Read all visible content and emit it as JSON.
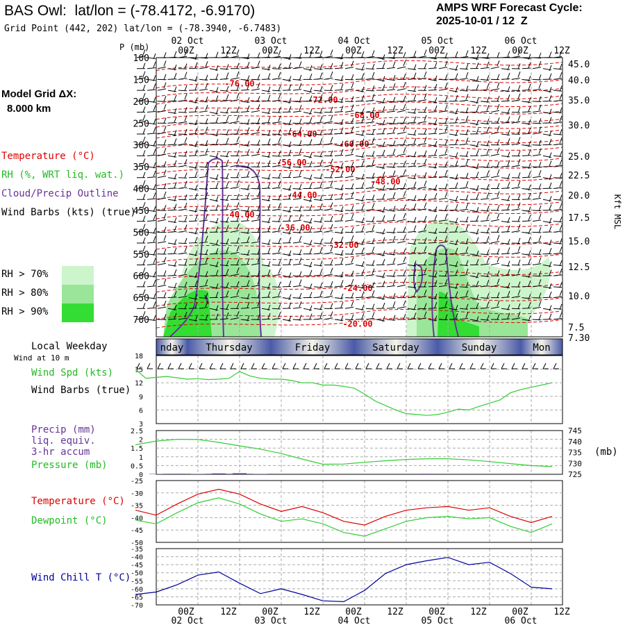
{
  "header": {
    "station_title": "BAS Owl:  lat/lon = (-78.4172, -6.9170)",
    "grid_point": "Grid Point (442, 202) lat/lon = (-78.3940, -6.7483)",
    "cycle_line1": "AMPS WRF Forecast Cycle:",
    "cycle_line2": "2025-10-01 / 12  Z"
  },
  "sidebar": {
    "model_grid_label": "Model Grid ΔX:",
    "model_grid_value": "8.000 km",
    "temperature_label": "Temperature (°C)",
    "rh_label": "RH (%, WRT liq. wat.)",
    "cloud_label": "Cloud/Precip Outline",
    "wind_label": "Wind Barbs (kts) (true)",
    "rh_legend": [
      {
        "label": "RH > 70%",
        "color": "#ccf5cc"
      },
      {
        "label": "RH > 80%",
        "color": "#99e699"
      },
      {
        "label": "RH > 90%",
        "color": "#33dd33"
      }
    ],
    "local_weekday_label": "Local Weekday",
    "wind_10m_label": "Wind at 10 m",
    "wind_spd_label": "Wind Spd (kts)",
    "wind_barbs_label": "Wind Barbs (true)",
    "precip_label_1": "Precip (mm)",
    "precip_label_2": "liq. equiv.",
    "precip_label_3": "3-hr accum",
    "pressure_label": "Pressure (mb)",
    "pressure_unit": "(mb)",
    "temp_label": "Temperature (°C)",
    "dewpoint_label": "Dewpoint (°C)",
    "windchill_label": "Wind Chill T (°C)"
  },
  "colors": {
    "temperature": "#dd0000",
    "rh": "#33cc33",
    "cloud": "#663399",
    "wind_speed": "#33cc33",
    "pressure": "#33cc33",
    "precip": "#663399",
    "dewpoint": "#33cc33",
    "windchill": "#000099",
    "grid": "#999999"
  },
  "chart_data": [
    {
      "type": "heatmap",
      "name": "vertical-cross-section",
      "ylabel": "P (mb)",
      "right_axis_label": "Kft MSL",
      "x_top_dates": [
        "02 Oct",
        "03 Oct",
        "04 Oct",
        "05 Oct",
        "06 Oct"
      ],
      "x_top_hours": [
        "00Z",
        "12Z",
        "00Z",
        "12Z",
        "00Z",
        "12Z",
        "00Z",
        "12Z",
        "00Z",
        "12Z"
      ],
      "pressure_ticks": [
        100,
        150,
        200,
        250,
        300,
        350,
        400,
        450,
        500,
        550,
        600,
        650,
        700
      ],
      "height_ticks": [
        "45.0",
        "40.0",
        "35.0",
        "30.0",
        "25.0",
        "22.5",
        "20.0",
        "17.5",
        "15.0",
        "12.5",
        "10.0",
        "7.5",
        "7.30"
      ],
      "temperature_contour_labels": [
        {
          "label": "-76.00",
          "forecast_hour": 30,
          "pressure": 160
        },
        {
          "label": "-72.00",
          "forecast_hour": 54,
          "pressure": 197
        },
        {
          "label": "-68.00",
          "forecast_hour": 66,
          "pressure": 232
        },
        {
          "label": "-64.00",
          "forecast_hour": 48,
          "pressure": 275
        },
        {
          "label": "-60.00",
          "forecast_hour": 63,
          "pressure": 298
        },
        {
          "label": "-56.00",
          "forecast_hour": 45,
          "pressure": 340
        },
        {
          "label": "-52.00",
          "forecast_hour": 59,
          "pressure": 356
        },
        {
          "label": "-48.00",
          "forecast_hour": 72,
          "pressure": 384
        },
        {
          "label": "-44.00",
          "forecast_hour": 48,
          "pressure": 415
        },
        {
          "label": "-40.00",
          "forecast_hour": 30,
          "pressure": 460
        },
        {
          "label": "-36.00",
          "forecast_hour": 46,
          "pressure": 490
        },
        {
          "label": "-32.00",
          "forecast_hour": 60,
          "pressure": 530
        },
        {
          "label": "-24.00",
          "forecast_hour": 64,
          "pressure": 628
        },
        {
          "label": "-20.00",
          "forecast_hour": 64,
          "pressure": 710
        }
      ]
    },
    {
      "type": "line",
      "name": "wind-speed",
      "weekdays": [
        "nday",
        "Thursday",
        "Friday",
        "Saturday",
        "Sunday",
        "Mon"
      ],
      "ylim": [
        3,
        18
      ],
      "yticks": [
        3,
        6,
        9,
        12,
        15,
        18
      ],
      "forecast_hours": [
        0,
        3,
        6,
        9,
        12,
        15,
        18,
        21,
        24,
        27,
        30,
        33,
        36,
        39,
        42,
        45,
        48,
        51,
        54,
        57,
        60,
        63,
        66,
        69,
        72,
        75,
        78,
        81,
        84,
        87,
        90,
        93,
        96,
        99,
        102,
        105,
        108,
        111,
        114,
        117,
        120
      ],
      "series": [
        {
          "name": "Wind Spd (kts)",
          "values": [
            15,
            13,
            13.2,
            13.4,
            13.1,
            12.8,
            12.9,
            12.7,
            12.8,
            13.0,
            14.5,
            13.5,
            13.0,
            12.8,
            12.8,
            12.5,
            12.0,
            12.0,
            11.5,
            11.5,
            11.2,
            10.8,
            9.5,
            8.0,
            7.0,
            6.0,
            5.2,
            5.0,
            4.8,
            5.0,
            5.5,
            6.2,
            6.0,
            6.8,
            7.5,
            8.2,
            9.8,
            10.5,
            11.0,
            11.5,
            12.0
          ]
        }
      ]
    },
    {
      "type": "line",
      "name": "precip-pressure",
      "ylim_left": [
        0,
        2.5
      ],
      "yticks_left": [
        "0",
        "0.5",
        "1",
        "1.5",
        "2",
        "2.5"
      ],
      "ylim_right": [
        725,
        745
      ],
      "yticks_right": [
        725,
        730,
        735,
        740,
        745
      ],
      "forecast_hours": [
        0,
        6,
        12,
        18,
        24,
        30,
        36,
        42,
        48,
        54,
        60,
        66,
        72,
        78,
        84,
        90,
        96,
        102,
        108,
        114,
        120
      ],
      "series": [
        {
          "name": "Pressure (mb)",
          "values": [
            738.5,
            740.2,
            741.0,
            740.9,
            739.6,
            738.0,
            736.5,
            734.5,
            732.0,
            729.6,
            729.7,
            730.5,
            731.2,
            731.8,
            732.1,
            732.1,
            731.6,
            730.8,
            729.9,
            729.0,
            728.5
          ]
        },
        {
          "name": "Precip (mm)",
          "type": "bar",
          "values": [
            0,
            0.02,
            0.03,
            0.02,
            0.05,
            0.06,
            0.02,
            0,
            0,
            0,
            0,
            0,
            0,
            0,
            0.03,
            0,
            0,
            0,
            0,
            0,
            0
          ]
        }
      ]
    },
    {
      "type": "line",
      "name": "temperature-dewpoint",
      "ylim": [
        -50,
        -25
      ],
      "yticks": [
        -25,
        -30,
        -35,
        -40,
        -45,
        -50
      ],
      "forecast_hours": [
        0,
        6,
        12,
        18,
        24,
        30,
        36,
        42,
        48,
        54,
        60,
        66,
        72,
        78,
        84,
        90,
        96,
        102,
        108,
        114,
        120
      ],
      "series": [
        {
          "name": "Temperature (°C)",
          "values": [
            -37,
            -39,
            -34.5,
            -30.5,
            -28.5,
            -30.5,
            -34.5,
            -37.5,
            -35.5,
            -38.0,
            -41.5,
            -43.0,
            -39.5,
            -37.0,
            -36.0,
            -35.5,
            -37.0,
            -36.0,
            -39.5,
            -42.0,
            -39.5
          ]
        },
        {
          "name": "Dewpoint (°C)",
          "values": [
            -41,
            -42.5,
            -38.0,
            -34.0,
            -32.0,
            -34.5,
            -38.5,
            -41.5,
            -40.5,
            -42.5,
            -46.0,
            -47.5,
            -44.5,
            -41.5,
            -40.0,
            -39.5,
            -40.5,
            -40.0,
            -43.5,
            -46.0,
            -42.5
          ]
        }
      ]
    },
    {
      "type": "line",
      "name": "wind-chill",
      "ylim": [
        -70,
        -35
      ],
      "yticks": [
        -35,
        -40,
        -45,
        -50,
        -55,
        -60,
        -65,
        -70
      ],
      "x_bottom_hours": [
        "00Z",
        "12Z",
        "00Z",
        "12Z",
        "00Z",
        "12Z",
        "00Z",
        "12Z",
        "00Z",
        "12Z"
      ],
      "x_bottom_dates": [
        "02 Oct",
        "03 Oct",
        "04 Oct",
        "05 Oct",
        "06 Oct"
      ],
      "forecast_hours": [
        0,
        6,
        12,
        18,
        24,
        30,
        36,
        42,
        48,
        54,
        60,
        66,
        72,
        78,
        84,
        90,
        96,
        102,
        108,
        114,
        120
      ],
      "series": [
        {
          "name": "Wind Chill T (°C)",
          "values": [
            -63.5,
            -62.0,
            -57.5,
            -51.5,
            -49.5,
            -56.5,
            -63.0,
            -60.0,
            -63.5,
            -67.5,
            -68.0,
            -61.0,
            -50.5,
            -45.0,
            -42.5,
            -40.5,
            -45.0,
            -43.5,
            -50.5,
            -59.0,
            -60.0
          ]
        }
      ]
    }
  ]
}
